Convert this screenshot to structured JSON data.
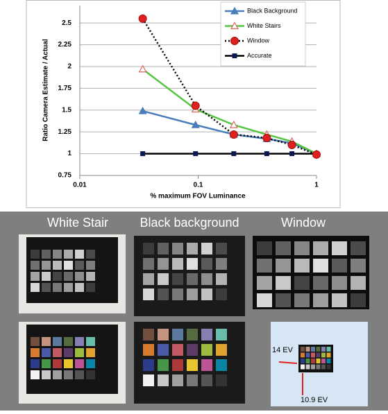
{
  "chart_data": {
    "type": "line",
    "x_label": "% maximum FOV Luminance",
    "y_label": "Ratio Camera Estimate / Actual",
    "x": [
      0.034,
      0.095,
      0.2,
      0.38,
      0.62,
      1
    ],
    "series": [
      {
        "name": "Black Background",
        "color": "#4a7ebb",
        "marker": "triangle",
        "marker_color": "#4a7ebb",
        "dash": "solid",
        "values": [
          1.49,
          1.33,
          1.22,
          1.17,
          1.12,
          1.0
        ]
      },
      {
        "name": "White Stairs",
        "color": "#55c443",
        "marker": "open-triangle",
        "marker_color": "#d9665a",
        "dash": "solid",
        "values": [
          1.97,
          1.51,
          1.33,
          1.22,
          1.14,
          1.0
        ]
      },
      {
        "name": "Window",
        "color": "#000000",
        "marker": "circle",
        "marker_color": "#e02020",
        "dash": "dotted",
        "values": [
          2.55,
          1.55,
          1.22,
          1.18,
          1.1,
          0.99
        ]
      },
      {
        "name": "Accurate",
        "color": "#000000",
        "marker": "square",
        "marker_color": "#0a1a50",
        "dash": "solid",
        "values": [
          1,
          1,
          1,
          1,
          1,
          1
        ]
      }
    ],
    "x_log": true,
    "xlim": [
      0.01,
      1
    ],
    "xticks": [
      0.01,
      0.1,
      1
    ],
    "ylim": [
      0.75,
      2.7
    ],
    "yticks": [
      0.75,
      1,
      1.25,
      1.5,
      1.75,
      2,
      2.25,
      2.5
    ],
    "grid": true,
    "legend": "top-right"
  },
  "photos": {
    "labels": [
      "White Stair",
      "Black background",
      "Window"
    ],
    "annotations": [
      "14 EV",
      "10.9 EV"
    ]
  }
}
